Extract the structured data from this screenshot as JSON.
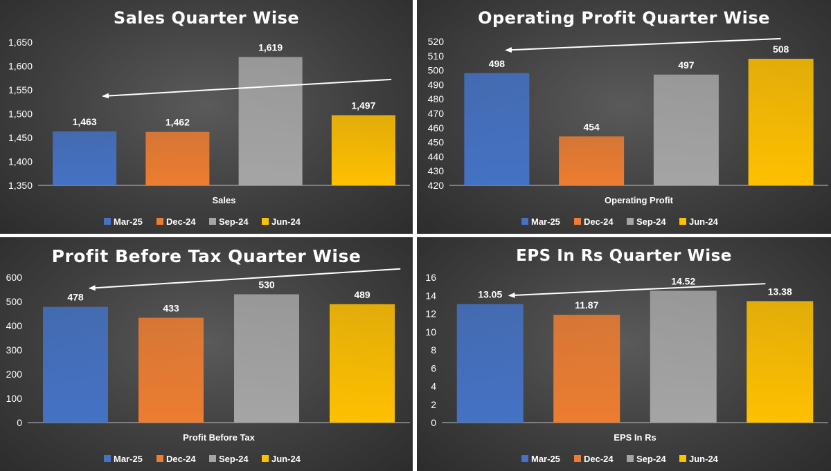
{
  "colors": {
    "Mar-25": "#4472c4",
    "Dec-24": "#ed7d31",
    "Sep-24": "#a5a5a5",
    "Jun-24": "#ffc000"
  },
  "legend": [
    "Mar-25",
    "Dec-24",
    "Sep-24",
    "Jun-24"
  ],
  "chart_data": [
    {
      "type": "bar",
      "title": "Sales Quarter Wise",
      "category_label": "Sales",
      "series": [
        {
          "name": "Mar-25",
          "value": 1463,
          "label": "1,463"
        },
        {
          "name": "Dec-24",
          "value": 1462,
          "label": "1,462"
        },
        {
          "name": "Sep-24",
          "value": 1619,
          "label": "1,619"
        },
        {
          "name": "Jun-24",
          "value": 1497,
          "label": "1,497"
        }
      ],
      "ylim": [
        1350,
        1650
      ],
      "yticks": [
        "1,350",
        "1,400",
        "1,450",
        "1,500",
        "1,550",
        "1,600",
        "1,650"
      ],
      "grid": false,
      "legend_position": "bottom",
      "trend_arrow": {
        "from": [
          3.8,
          1572
        ],
        "to": [
          0.7,
          1537
        ]
      }
    },
    {
      "type": "bar",
      "title": "Operating Profit Quarter Wise",
      "category_label": "Operating Profit",
      "series": [
        {
          "name": "Mar-25",
          "value": 498,
          "label": "498"
        },
        {
          "name": "Dec-24",
          "value": 454,
          "label": "454"
        },
        {
          "name": "Sep-24",
          "value": 497,
          "label": "497"
        },
        {
          "name": "Jun-24",
          "value": 508,
          "label": "508"
        }
      ],
      "ylim": [
        420,
        520
      ],
      "yticks": [
        "420",
        "430",
        "440",
        "450",
        "460",
        "470",
        "480",
        "490",
        "500",
        "510",
        "520"
      ],
      "grid": false,
      "legend_position": "bottom",
      "trend_arrow": {
        "from": [
          3.5,
          522
        ],
        "to": [
          0.6,
          514
        ]
      }
    },
    {
      "type": "bar",
      "title": "Profit Before Tax Quarter Wise",
      "category_label": "Profit Before Tax",
      "series": [
        {
          "name": "Mar-25",
          "value": 478,
          "label": "478"
        },
        {
          "name": "Dec-24",
          "value": 433,
          "label": "433"
        },
        {
          "name": "Sep-24",
          "value": 530,
          "label": "530"
        },
        {
          "name": "Jun-24",
          "value": 489,
          "label": "489"
        }
      ],
      "ylim": [
        0,
        600
      ],
      "yticks": [
        "0",
        "100",
        "200",
        "300",
        "400",
        "500",
        "600"
      ],
      "grid": false,
      "legend_position": "bottom",
      "trend_arrow": {
        "from": [
          3.9,
          635
        ],
        "to": [
          0.65,
          555
        ]
      }
    },
    {
      "type": "bar",
      "title": "EPS In Rs Quarter Wise",
      "category_label": "EPS In Rs",
      "series": [
        {
          "name": "Mar-25",
          "value": 13.05,
          "label": "13.05"
        },
        {
          "name": "Dec-24",
          "value": 11.87,
          "label": "11.87"
        },
        {
          "name": "Sep-24",
          "value": 14.52,
          "label": "14.52"
        },
        {
          "name": "Jun-24",
          "value": 13.38,
          "label": "13.38"
        }
      ],
      "ylim": [
        0,
        16
      ],
      "yticks": [
        "0",
        "2",
        "4",
        "6",
        "8",
        "10",
        "12",
        "14",
        "16"
      ],
      "grid": false,
      "legend_position": "bottom",
      "trend_arrow": {
        "from": [
          3.35,
          15.3
        ],
        "to": [
          0.7,
          14.0
        ]
      }
    }
  ]
}
